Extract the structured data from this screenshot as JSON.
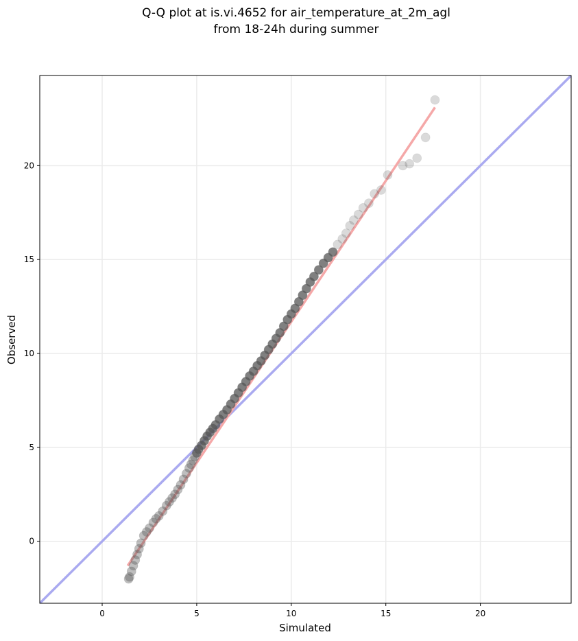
{
  "chart_data": {
    "type": "scatter",
    "title": "Q-Q plot at is.vi.4652 for air_temperature_at_2m_agl",
    "subtitle": "from 18-24h during summer",
    "xlabel": "Simulated",
    "ylabel": "Observed",
    "xlim": [
      -3.3,
      24.8
    ],
    "ylim": [
      -3.3,
      24.8
    ],
    "xticks": [
      0,
      5,
      10,
      15,
      20
    ],
    "yticks": [
      0,
      5,
      10,
      15,
      20
    ],
    "grid": true,
    "reference_line": {
      "from": [
        -3.3,
        -3.3
      ],
      "to": [
        24.8,
        24.8
      ],
      "color": "#aaaaf0"
    },
    "fit_line": {
      "from": [
        1.35,
        -1.3
      ],
      "to": [
        17.6,
        23.1
      ],
      "color": "#f5a8a8"
    },
    "quantiles": {
      "x": [
        1.4,
        1.45,
        1.55,
        1.65,
        1.75,
        1.85,
        1.95,
        2.05,
        2.2,
        2.35,
        2.5,
        2.7,
        2.85,
        3.0,
        3.2,
        3.4,
        3.55,
        3.7,
        3.85,
        4.0,
        4.15,
        4.3,
        4.45,
        4.6,
        4.7,
        4.8,
        4.9,
        5.0,
        5.1,
        5.25,
        5.4,
        5.55,
        5.7,
        5.85,
        6.0,
        6.2,
        6.4,
        6.6,
        6.8,
        7.0,
        7.2,
        7.4,
        7.6,
        7.8,
        8.0,
        8.2,
        8.4,
        8.6,
        8.8,
        9.0,
        9.2,
        9.4,
        9.6,
        9.8,
        10.0,
        10.2,
        10.4,
        10.6,
        10.8,
        11.0,
        11.2,
        11.45,
        11.7,
        11.95,
        12.2,
        12.45,
        12.7,
        12.9,
        13.1,
        13.3,
        13.55,
        13.8,
        14.1,
        14.4,
        14.75,
        15.1,
        15.9,
        16.25,
        16.65,
        17.1,
        17.6
      ],
      "y": [
        -2.0,
        -1.9,
        -1.6,
        -1.3,
        -1.0,
        -0.7,
        -0.4,
        -0.1,
        0.3,
        0.5,
        0.7,
        1.0,
        1.2,
        1.35,
        1.6,
        1.9,
        2.1,
        2.3,
        2.5,
        2.75,
        3.0,
        3.3,
        3.6,
        3.9,
        4.1,
        4.3,
        4.5,
        4.7,
        4.9,
        5.1,
        5.35,
        5.6,
        5.8,
        6.0,
        6.2,
        6.5,
        6.75,
        7.0,
        7.3,
        7.6,
        7.9,
        8.2,
        8.5,
        8.8,
        9.05,
        9.35,
        9.6,
        9.9,
        10.2,
        10.5,
        10.8,
        11.1,
        11.45,
        11.8,
        12.1,
        12.4,
        12.75,
        13.1,
        13.45,
        13.8,
        14.1,
        14.45,
        14.8,
        15.1,
        15.4,
        15.8,
        16.1,
        16.4,
        16.8,
        17.1,
        17.4,
        17.75,
        18.0,
        18.5,
        18.7,
        19.5,
        20.0,
        20.1,
        20.4,
        21.5,
        23.5
      ]
    }
  }
}
